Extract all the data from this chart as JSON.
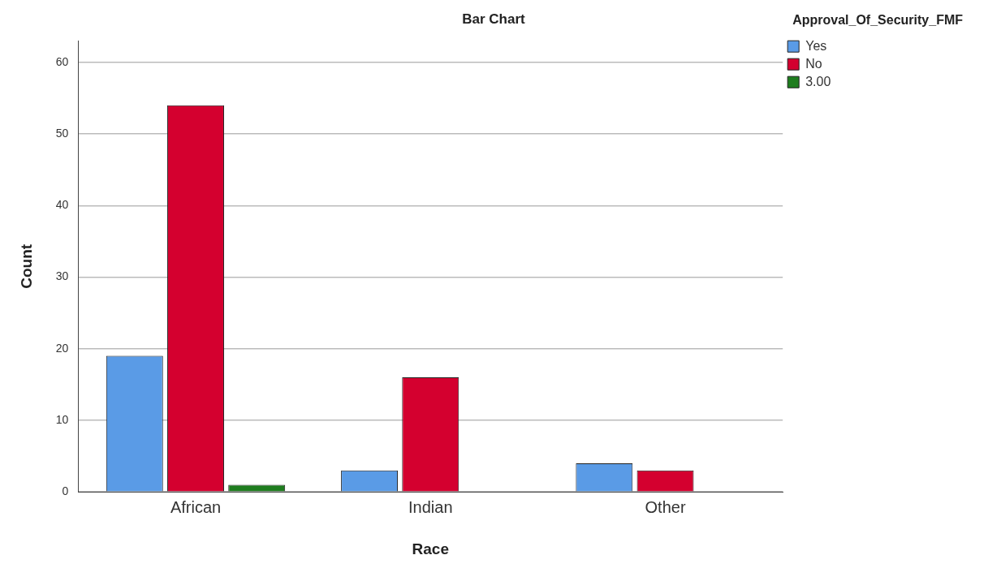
{
  "chart_data": {
    "type": "bar",
    "title": "Bar Chart",
    "xlabel": "Race",
    "ylabel": "Count",
    "legend_title": "Approval_Of_Security_FMF",
    "categories": [
      "African",
      "Indian",
      "Other"
    ],
    "series": [
      {
        "name": "Yes",
        "color": "#5a9be6",
        "values": [
          19,
          3,
          4
        ]
      },
      {
        "name": "No",
        "color": "#d4002f",
        "values": [
          54,
          16,
          3
        ]
      },
      {
        "name": "3.00",
        "color": "#1e7d1e",
        "values": [
          1,
          null,
          null
        ]
      }
    ],
    "ylim": [
      0,
      63
    ],
    "yticks": [
      0,
      10,
      20,
      30,
      40,
      50,
      60
    ],
    "grid": "y",
    "legend": "top right"
  }
}
